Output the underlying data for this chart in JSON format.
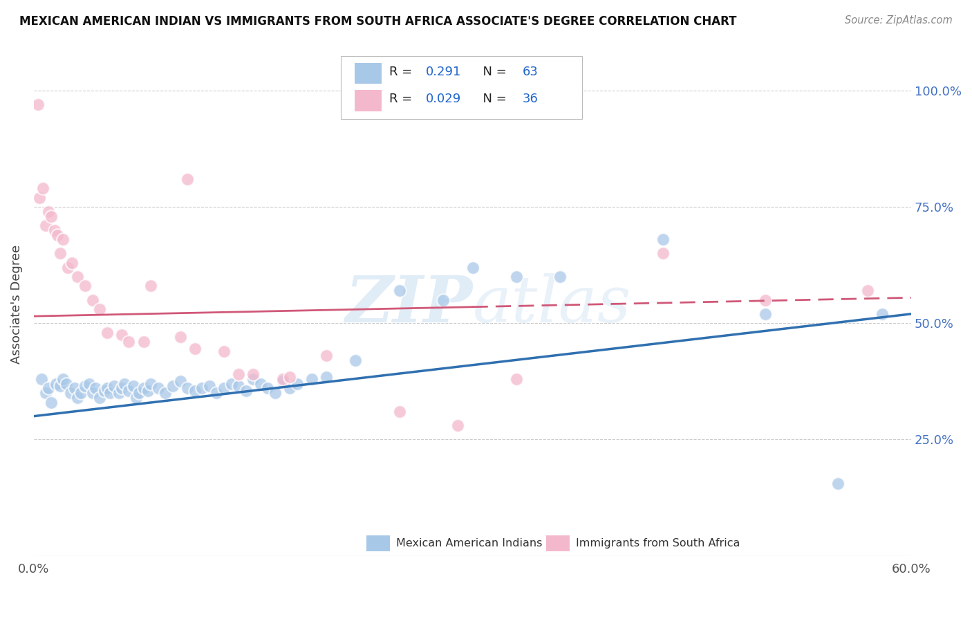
{
  "title": "MEXICAN AMERICAN INDIAN VS IMMIGRANTS FROM SOUTH AFRICA ASSOCIATE'S DEGREE CORRELATION CHART",
  "source": "Source: ZipAtlas.com",
  "ylabel": "Associate's Degree",
  "legend_label1": "Mexican American Indians",
  "legend_label2": "Immigrants from South Africa",
  "R1": 0.291,
  "N1": 63,
  "R2": 0.029,
  "N2": 36,
  "blue_color": "#a8c8e8",
  "pink_color": "#f4b8cc",
  "blue_line_color": "#3070b0",
  "pink_line_color": "#d05878",
  "watermark": "ZIPatlas",
  "blue_scatter": [
    [
      0.5,
      38.0
    ],
    [
      0.8,
      35.0
    ],
    [
      1.0,
      36.0
    ],
    [
      1.2,
      33.0
    ],
    [
      1.5,
      37.0
    ],
    [
      1.8,
      36.5
    ],
    [
      2.0,
      38.0
    ],
    [
      2.2,
      37.0
    ],
    [
      2.5,
      35.0
    ],
    [
      2.8,
      36.0
    ],
    [
      3.0,
      34.0
    ],
    [
      3.2,
      35.0
    ],
    [
      3.5,
      36.5
    ],
    [
      3.8,
      37.0
    ],
    [
      4.0,
      35.0
    ],
    [
      4.2,
      36.0
    ],
    [
      4.5,
      34.0
    ],
    [
      4.8,
      35.5
    ],
    [
      5.0,
      36.0
    ],
    [
      5.2,
      35.0
    ],
    [
      5.5,
      36.5
    ],
    [
      5.8,
      35.0
    ],
    [
      6.0,
      36.0
    ],
    [
      6.2,
      37.0
    ],
    [
      6.5,
      35.5
    ],
    [
      6.8,
      36.5
    ],
    [
      7.0,
      34.0
    ],
    [
      7.2,
      35.0
    ],
    [
      7.5,
      36.0
    ],
    [
      7.8,
      35.5
    ],
    [
      8.0,
      37.0
    ],
    [
      8.5,
      36.0
    ],
    [
      9.0,
      35.0
    ],
    [
      9.5,
      36.5
    ],
    [
      10.0,
      37.5
    ],
    [
      10.5,
      36.0
    ],
    [
      11.0,
      35.5
    ],
    [
      11.5,
      36.0
    ],
    [
      12.0,
      36.5
    ],
    [
      12.5,
      35.0
    ],
    [
      13.0,
      36.0
    ],
    [
      13.5,
      37.0
    ],
    [
      14.0,
      36.5
    ],
    [
      14.5,
      35.5
    ],
    [
      15.0,
      38.0
    ],
    [
      15.5,
      37.0
    ],
    [
      16.0,
      36.0
    ],
    [
      16.5,
      35.0
    ],
    [
      17.0,
      37.5
    ],
    [
      17.5,
      36.0
    ],
    [
      18.0,
      37.0
    ],
    [
      19.0,
      38.0
    ],
    [
      20.0,
      38.5
    ],
    [
      22.0,
      42.0
    ],
    [
      25.0,
      57.0
    ],
    [
      28.0,
      55.0
    ],
    [
      30.0,
      62.0
    ],
    [
      33.0,
      60.0
    ],
    [
      36.0,
      60.0
    ],
    [
      43.0,
      68.0
    ],
    [
      50.0,
      52.0
    ],
    [
      55.0,
      15.5
    ],
    [
      58.0,
      52.0
    ]
  ],
  "pink_scatter": [
    [
      0.3,
      97.0
    ],
    [
      0.4,
      77.0
    ],
    [
      0.6,
      79.0
    ],
    [
      0.8,
      71.0
    ],
    [
      1.0,
      74.0
    ],
    [
      1.2,
      73.0
    ],
    [
      1.4,
      70.0
    ],
    [
      1.6,
      69.0
    ],
    [
      1.8,
      65.0
    ],
    [
      2.0,
      68.0
    ],
    [
      2.3,
      62.0
    ],
    [
      2.6,
      63.0
    ],
    [
      3.0,
      60.0
    ],
    [
      3.5,
      58.0
    ],
    [
      4.0,
      55.0
    ],
    [
      4.5,
      53.0
    ],
    [
      5.0,
      48.0
    ],
    [
      6.0,
      47.5
    ],
    [
      6.5,
      46.0
    ],
    [
      7.5,
      46.0
    ],
    [
      8.0,
      58.0
    ],
    [
      10.0,
      47.0
    ],
    [
      11.0,
      44.5
    ],
    [
      13.0,
      44.0
    ],
    [
      14.0,
      39.0
    ],
    [
      15.0,
      39.0
    ],
    [
      17.0,
      38.0
    ],
    [
      17.5,
      38.5
    ],
    [
      20.0,
      43.0
    ],
    [
      25.0,
      31.0
    ],
    [
      29.0,
      28.0
    ],
    [
      33.0,
      38.0
    ],
    [
      50.0,
      55.0
    ],
    [
      57.0,
      57.0
    ],
    [
      43.0,
      65.0
    ],
    [
      10.5,
      81.0
    ]
  ],
  "blue_line_x": [
    0,
    60
  ],
  "blue_line_y": [
    30.0,
    52.0
  ],
  "pink_line_x": [
    0,
    60
  ],
  "pink_line_y": [
    51.5,
    55.5
  ],
  "pink_line_dash": [
    8,
    4
  ],
  "xlim": [
    0,
    60
  ],
  "ylim": [
    0,
    108
  ],
  "ytick_vals": [
    25,
    50,
    75,
    100
  ],
  "xtick_vals": [
    0,
    10,
    20,
    30,
    40,
    50,
    60
  ],
  "background_color": "#ffffff"
}
